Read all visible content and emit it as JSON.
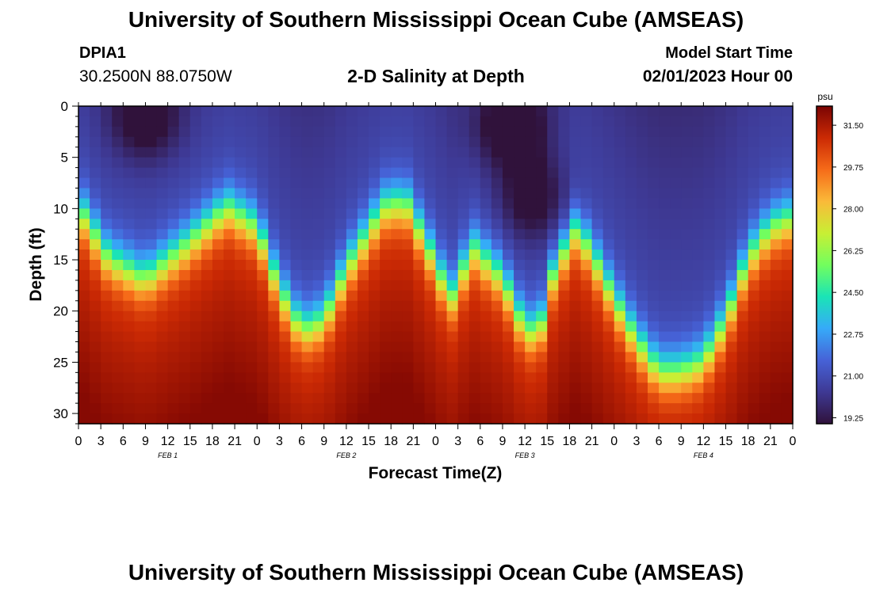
{
  "header": {
    "title": "University of Southern Mississippi Ocean Cube (AMSEAS)",
    "station_id": "DPIA1",
    "station_coords": "30.2500N  88.0750W",
    "chart_title": "2-D Salinity at Depth",
    "model_start_label": "Model Start Time",
    "model_start_value": "02/01/2023 Hour 00"
  },
  "footer": {
    "title": "University of Southern Mississippi Ocean Cube (AMSEAS)"
  },
  "colors": {
    "background": "#ffffff",
    "colormap": [
      "#30123b",
      "#3e3994",
      "#4662d7",
      "#36aaf9",
      "#1ae4b6",
      "#72fe5e",
      "#c8ef34",
      "#faba39",
      "#f66b19",
      "#cb2a04",
      "#7a0403"
    ]
  },
  "chart_data": {
    "type": "heatmap",
    "title": "2-D Salinity at Depth",
    "xlabel": "Forecast Time(Z)",
    "ylabel": "Depth (ft)",
    "xlim": [
      0,
      96
    ],
    "ylim": [
      31,
      0
    ],
    "x_tick_hours": [
      0,
      3,
      6,
      9,
      12,
      15,
      18,
      21,
      24,
      27,
      30,
      33,
      36,
      39,
      42,
      45,
      48,
      51,
      54,
      57,
      60,
      63,
      66,
      69,
      72,
      75,
      78,
      81,
      84,
      87,
      90,
      93,
      96
    ],
    "x_tick_labels": [
      "0",
      "3",
      "6",
      "9",
      "12",
      "15",
      "18",
      "21",
      "0",
      "3",
      "6",
      "9",
      "12",
      "15",
      "18",
      "21",
      "0",
      "3",
      "6",
      "9",
      "12",
      "15",
      "18",
      "21",
      "0",
      "3",
      "6",
      "9",
      "12",
      "15",
      "18",
      "21",
      "0"
    ],
    "date_labels": [
      {
        "text": "FEB 1",
        "hour": 12
      },
      {
        "text": "FEB 2",
        "hour": 36
      },
      {
        "text": "FEB 3",
        "hour": 60
      },
      {
        "text": "FEB 4",
        "hour": 84
      }
    ],
    "y_ticks": [
      0,
      5,
      10,
      15,
      20,
      25,
      30
    ],
    "colorbar": {
      "unit": "psu",
      "min": 19.0,
      "max": 32.3,
      "ticks": [
        19.25,
        21.0,
        22.75,
        24.5,
        26.25,
        28.0,
        29.75,
        31.5
      ],
      "tick_labels": [
        "19.25",
        "21.00",
        "22.75",
        "24.50",
        "26.25",
        "28.00",
        "29.75",
        "31.50"
      ]
    },
    "fresh_layer_salinity": 21.0,
    "salt_layer_salinity": 31.2,
    "interface_depth_ft": [
      {
        "hour": 0,
        "depth": 10
      },
      {
        "hour": 4,
        "depth": 15
      },
      {
        "hour": 9,
        "depth": 17
      },
      {
        "hour": 14,
        "depth": 14
      },
      {
        "hour": 20,
        "depth": 10
      },
      {
        "hour": 24,
        "depth": 12
      },
      {
        "hour": 27,
        "depth": 18
      },
      {
        "hour": 30,
        "depth": 22
      },
      {
        "hour": 33,
        "depth": 21
      },
      {
        "hour": 36,
        "depth": 16
      },
      {
        "hour": 41,
        "depth": 10
      },
      {
        "hour": 44,
        "depth": 9.5
      },
      {
        "hour": 47,
        "depth": 14
      },
      {
        "hour": 50,
        "depth": 19
      },
      {
        "hour": 53,
        "depth": 14
      },
      {
        "hour": 57,
        "depth": 17
      },
      {
        "hour": 60,
        "depth": 22
      },
      {
        "hour": 62,
        "depth": 22
      },
      {
        "hour": 64,
        "depth": 16
      },
      {
        "hour": 67,
        "depth": 12
      },
      {
        "hour": 70,
        "depth": 16
      },
      {
        "hour": 72,
        "depth": 19
      },
      {
        "hour": 75,
        "depth": 23
      },
      {
        "hour": 78,
        "depth": 26
      },
      {
        "hour": 81,
        "depth": 26
      },
      {
        "hour": 84,
        "depth": 25
      },
      {
        "hour": 87,
        "depth": 21
      },
      {
        "hour": 90,
        "depth": 15
      },
      {
        "hour": 93,
        "depth": 12
      },
      {
        "hour": 96,
        "depth": 11
      }
    ],
    "fresh_pockets": [
      {
        "hour": 9,
        "depth": 1,
        "salinity": 19.6
      },
      {
        "hour": 58,
        "depth": 2,
        "salinity": 19.4
      },
      {
        "hour": 61,
        "depth": 9,
        "salinity": 19.8
      }
    ]
  }
}
